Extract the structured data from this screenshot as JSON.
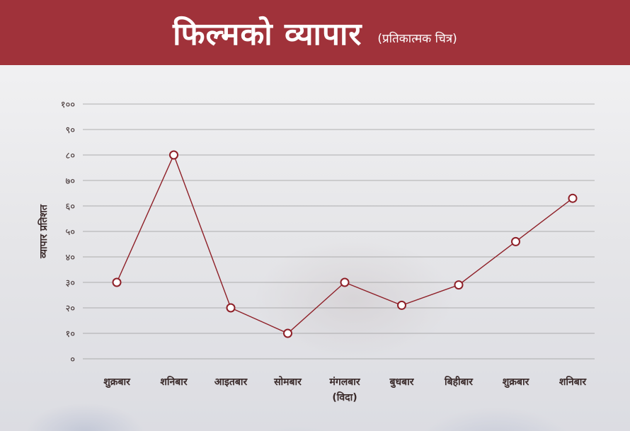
{
  "header": {
    "title": "फिल्मको व्यापार",
    "subtitle": "(प्रतिकात्मक चित्र)"
  },
  "colors": {
    "header_bg": "#a0323a",
    "line": "#8e1f27",
    "grid": "#9a9a9a"
  },
  "chart_data": {
    "type": "line",
    "title": "फिल्मको व्यापार",
    "ylabel": "व्यापार प्रतिशत",
    "xlabel": "",
    "ylim": [
      0,
      100
    ],
    "yticks": [
      0,
      10,
      20,
      30,
      40,
      50,
      60,
      70,
      80,
      90,
      100
    ],
    "ytick_labels": [
      "०",
      "१०",
      "२०",
      "३०",
      "४०",
      "५०",
      "६०",
      "७०",
      "८०",
      "९०",
      "१००"
    ],
    "grid": true,
    "categories": [
      [
        "शुक्रबार"
      ],
      [
        "शनिबार"
      ],
      [
        "आइतबार"
      ],
      [
        "सोमबार"
      ],
      [
        "मंगलबार",
        "(विदा)"
      ],
      [
        "बुधबार"
      ],
      [
        "बिहीबार"
      ],
      [
        "शुक्रबार"
      ],
      [
        "शनिबार"
      ]
    ],
    "series": [
      {
        "values": [
          30,
          80,
          20,
          10,
          30,
          21,
          29,
          46,
          63
        ]
      }
    ]
  }
}
